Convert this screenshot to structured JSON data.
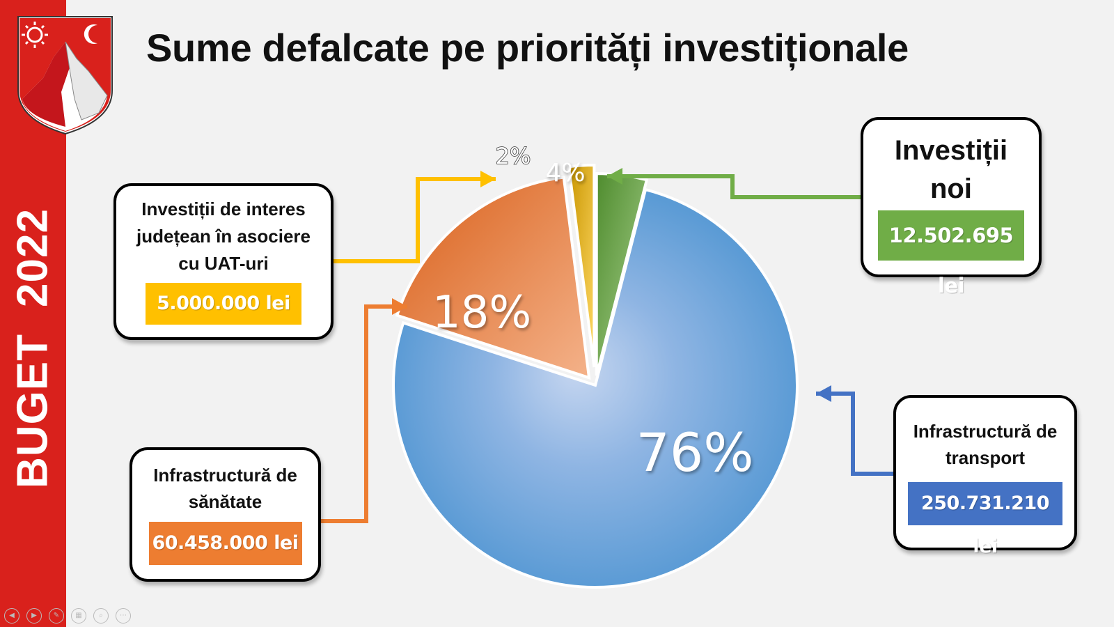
{
  "sidebar": {
    "word": "BUGET",
    "year": "2022"
  },
  "title": "Sume defalcate pe priorități investiționale",
  "colors": {
    "sidebar": "#d9211c",
    "transport": "#5b9bd5",
    "sanatate": "#ed7d31",
    "asociere": "#ffc000",
    "noi": "#70ad47"
  },
  "chart_data": {
    "type": "pie",
    "title": "Sume defalcate pe priorități investiționale",
    "slices": [
      {
        "label": "Investiții noi",
        "percent": 4,
        "percent_label": "4%",
        "amount": "12.502.695 lei",
        "color": "#70ad47",
        "callout_border": "#70ad47"
      },
      {
        "label": "Infrastructură de transport",
        "percent": 76,
        "percent_label": "76%",
        "amount": "250.731.210 lei",
        "color": "#5b9bd5",
        "callout_border": "#4472c4"
      },
      {
        "label": "Infrastructură de sănătate",
        "percent": 18,
        "percent_label": "18%",
        "amount": "60.458.000 lei",
        "color": "#ed7d31",
        "callout_border": "#ed7d31"
      },
      {
        "label": "Investiții de interes județean în asociere cu UAT-uri",
        "percent": 2,
        "percent_label": "2%",
        "amount": "5.000.000 lei",
        "color": "#ffc000",
        "callout_border": "#ffc000"
      }
    ]
  },
  "callouts": {
    "noi": {
      "line1": "Investiții",
      "line2": "noi",
      "amount": "12.502.695 lei"
    },
    "transport": {
      "line1": "Infrastructură de",
      "line2": "transport",
      "amount": "250.731.210 lei"
    },
    "sanatate": {
      "line1": "Infrastructură de",
      "line2": "sănătate",
      "amount": "60.458.000 lei"
    },
    "asociere": {
      "line1": "Investiții de interes",
      "line2": "județean în asociere",
      "line3": "cu UAT-uri",
      "amount": "5.000.000 lei"
    }
  },
  "controls": [
    "prev-icon",
    "next-icon",
    "pen-icon",
    "grid-icon",
    "zoom-icon",
    "more-icon"
  ]
}
